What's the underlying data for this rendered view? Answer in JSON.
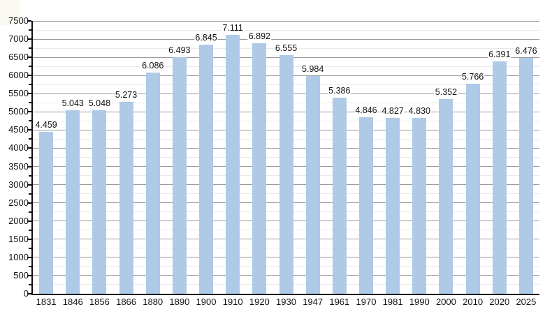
{
  "chart_data": {
    "type": "bar",
    "title": "",
    "xlabel": "",
    "ylabel": "",
    "categories": [
      "1831",
      "1846",
      "1856",
      "1866",
      "1880",
      "1890",
      "1900",
      "1910",
      "1920",
      "1930",
      "1947",
      "1961",
      "1970",
      "1981",
      "1990",
      "2000",
      "2010",
      "2020",
      "2025"
    ],
    "values": [
      4459,
      5043,
      5048,
      5273,
      6086,
      6493,
      6845,
      7111,
      6892,
      6555,
      5984,
      5386,
      4846,
      4827,
      4830,
      5352,
      5766,
      6391,
      6476
    ],
    "value_labels": [
      "4.459",
      "5.043",
      "5.048",
      "5.273",
      "6.086",
      "6.493",
      "6.845",
      "7.111",
      "6.892",
      "6.555",
      "5.984",
      "5.386",
      "4.846",
      "4.827",
      "4.830",
      "5.352",
      "5.766",
      "6.391",
      "6.476"
    ],
    "ylim": [
      0,
      7500
    ],
    "y_major_step": 500,
    "y_minor_step": 250,
    "y_tick_labels": [
      "0",
      "500",
      "1000",
      "1500",
      "2000",
      "2500",
      "3000",
      "3500",
      "4000",
      "4500",
      "5000",
      "5500",
      "6000",
      "6500",
      "7000",
      "7500"
    ],
    "grid": "on",
    "legend": "none",
    "colors": {
      "bar_fill": "#aecae6",
      "major_grid": "#9a9a9a",
      "minor_grid": "#e9e9e9",
      "axis": "#111111",
      "text": "#111111",
      "background": "#ffffff"
    }
  }
}
